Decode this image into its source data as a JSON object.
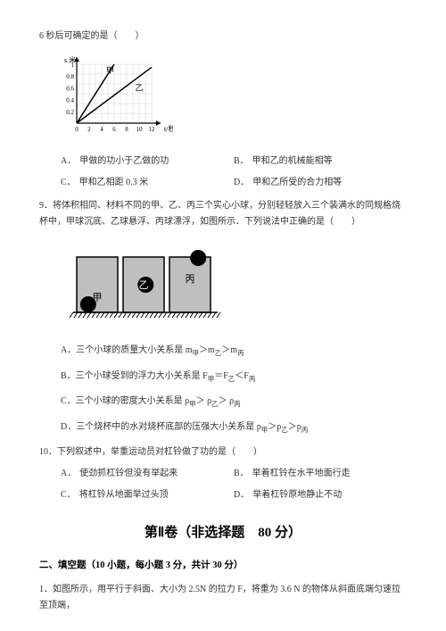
{
  "q8_tail": "6 秒后可确定的是（　　）",
  "chart": {
    "width": 120,
    "height": 90,
    "bg": "#ffffff",
    "grid_color": "#cfd8c8",
    "axis_color": "#000000",
    "xlabel": "t/秒",
    "ylabel": "s 米",
    "yticks": [
      "0.2",
      "0.4",
      "0.6",
      "0.8",
      "1"
    ],
    "xticks": [
      "0",
      "2",
      "4",
      "6",
      "8",
      "10",
      "12"
    ],
    "line1_label": "甲",
    "line2_label": "乙",
    "line_color": "#000000",
    "grid_cols": 12,
    "grid_rows": 6
  },
  "q8_opts": {
    "A": "甲做的功小于乙做的功",
    "B": "甲和乙的机械能相等",
    "C": "甲和乙相距 0.3 米",
    "D": "甲和乙所受的合力相等"
  },
  "q9": {
    "text": "9．将体积相同、材料不同的甲、乙、丙三个实心小球，分别轻轻放入三个装满水的同规格烧杯中，甲球沉底、乙球悬浮、丙球漂浮，如图所示．下列说法中正确的是（　　）",
    "labels": {
      "a": "甲",
      "b": "乙",
      "c": "丙"
    },
    "figure": {
      "beaker_fill": "#bfbfbf",
      "ball_fill": "#000000",
      "beaker_border": "#000000",
      "hatch_color": "#000000"
    },
    "opts": {
      "A_pre": "三个小球的质量大小关系是 m",
      "A_mid1": "＞m",
      "A_mid2": "＞m",
      "B_pre": "三个小球受到的浮力大小关系是 F",
      "B_mid1": "＝F",
      "B_mid2": "＜F",
      "C_pre": "三个小球的密度大小关系是 ρ",
      "C_mid1": "＞ ρ",
      "C_mid2": "＞ ρ",
      "D_pre": "三个烧杯中的水对烧杯底部的压强大小关系是 p",
      "D_mid1": "＞p",
      "D_mid2": "＞p",
      "sub_a": "甲",
      "sub_b": "乙",
      "sub_c": "丙"
    }
  },
  "q10": {
    "text": "10．下列叙述中，举重运动员对杠铃做了功的是（　　）",
    "opts": {
      "A": "使劲抓杠铃但没有举起来",
      "B": "举着杠铃在水平地面行走",
      "C": "将杠铃从地面举过头顶",
      "D": "举着杠铃原地静止不动"
    }
  },
  "section2": "第Ⅱ卷（非选择题　80 分）",
  "fill_header": "二、填空题（10 小题，每小题 3 分，共计 30 分）",
  "q_fill1": "1．如图所示，用平行于斜面、大小为 2.5N 的拉力 F，将重为 3.6 N 的物体从斜面底端匀速拉至顶端，"
}
